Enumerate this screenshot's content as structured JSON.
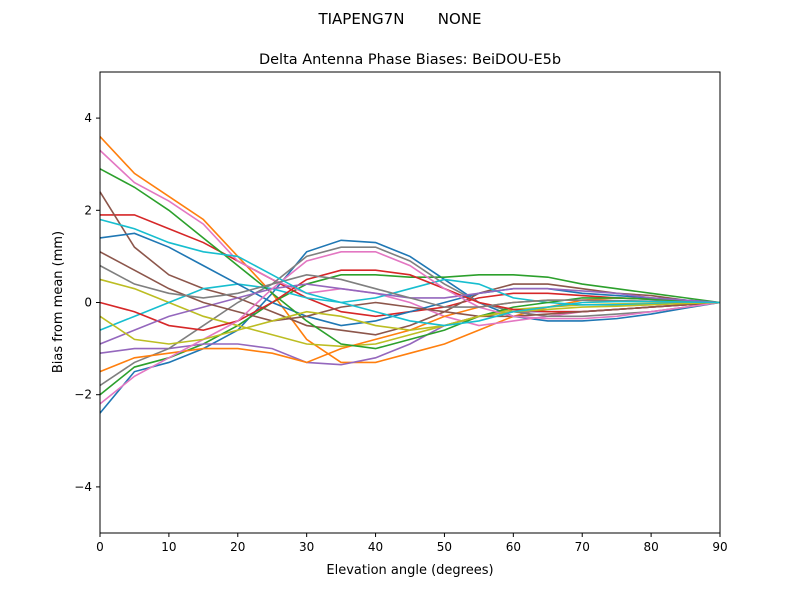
{
  "chart_data": {
    "type": "line",
    "suptitle": "TIAPENG7N       NONE",
    "title": "Delta Antenna Phase Biases: BeiDOU-E5b",
    "xlabel": "Elevation angle (degrees)",
    "ylabel": "Bias from mean (mm)",
    "xlim": [
      0,
      90
    ],
    "ylim": [
      -5,
      5
    ],
    "xticks": [
      0,
      10,
      20,
      30,
      40,
      50,
      60,
      70,
      80,
      90
    ],
    "yticks": [
      -4,
      -2,
      0,
      2,
      4
    ],
    "grid": false,
    "colors": [
      "#1f77b4",
      "#ff7f0e",
      "#2ca02c",
      "#d62728",
      "#9467bd",
      "#8c564b",
      "#e377c2",
      "#7f7f7f",
      "#bcbd22",
      "#17becf"
    ],
    "x": [
      0,
      5,
      10,
      15,
      20,
      25,
      30,
      35,
      40,
      45,
      50,
      55,
      60,
      65,
      70,
      75,
      80,
      85,
      90
    ],
    "series": [
      {
        "values": [
          -2.4,
          -1.5,
          -1.3,
          -1.0,
          -0.6,
          0.2,
          1.1,
          1.35,
          1.3,
          1.0,
          0.5,
          0.0,
          -0.3,
          -0.4,
          -0.4,
          -0.35,
          -0.25,
          -0.12,
          0
        ]
      },
      {
        "values": [
          3.6,
          2.8,
          2.3,
          1.8,
          1.0,
          0.2,
          -0.8,
          -1.3,
          -1.3,
          -1.1,
          -0.9,
          -0.6,
          -0.3,
          -0.1,
          0.05,
          0.1,
          0.08,
          0.04,
          0
        ]
      },
      {
        "values": [
          -2.0,
          -1.4,
          -1.2,
          -0.9,
          -0.5,
          0,
          0.4,
          0.6,
          0.6,
          0.55,
          0.55,
          0.6,
          0.6,
          0.55,
          0.4,
          0.3,
          0.2,
          0.1,
          0
        ]
      },
      {
        "values": [
          1.9,
          1.9,
          1.6,
          1.3,
          0.9,
          0.5,
          0.1,
          -0.2,
          -0.3,
          -0.2,
          -0.1,
          0.1,
          0.2,
          0.2,
          0.15,
          0.1,
          0.07,
          0.03,
          0
        ]
      },
      {
        "values": [
          -1.1,
          -1.0,
          -1.0,
          -0.9,
          -0.9,
          -1.0,
          -1.3,
          -1.35,
          -1.2,
          -0.9,
          -0.5,
          -0.3,
          -0.2,
          -0.2,
          -0.2,
          -0.15,
          -0.1,
          -0.05,
          0
        ]
      },
      {
        "values": [
          2.4,
          1.2,
          0.6,
          0.3,
          0.1,
          -0.2,
          -0.5,
          -0.6,
          -0.7,
          -0.5,
          -0.2,
          0.2,
          0.4,
          0.4,
          0.3,
          0.2,
          0.15,
          0.05,
          0
        ]
      },
      {
        "values": [
          3.3,
          2.6,
          2.2,
          1.7,
          0.9,
          0.5,
          0.2,
          0.3,
          0.2,
          0,
          -0.3,
          -0.5,
          -0.4,
          -0.3,
          -0.2,
          -0.15,
          -0.1,
          -0.05,
          0
        ]
      },
      {
        "values": [
          -1.8,
          -1.3,
          -1.0,
          -0.5,
          0,
          0.4,
          1.0,
          1.2,
          1.2,
          0.9,
          0.4,
          0,
          -0.2,
          -0.3,
          -0.3,
          -0.25,
          -0.2,
          -0.1,
          0
        ]
      },
      {
        "values": [
          0.5,
          0.3,
          0,
          -0.3,
          -0.5,
          -0.7,
          -0.9,
          -0.95,
          -0.9,
          -0.7,
          -0.5,
          -0.3,
          -0.15,
          -0.1,
          -0.05,
          -0.03,
          -0.02,
          -0.01,
          0
        ]
      },
      {
        "values": [
          -0.6,
          -0.3,
          0,
          0.3,
          0.4,
          0.3,
          0.1,
          0,
          0.1,
          0.3,
          0.5,
          0.4,
          0.1,
          0,
          -0.05,
          -0.05,
          -0.03,
          -0.01,
          0
        ]
      },
      {
        "values": [
          1.4,
          1.5,
          1.2,
          0.8,
          0.4,
          0,
          -0.3,
          -0.5,
          -0.4,
          -0.2,
          0,
          0.2,
          0.3,
          0.3,
          0.2,
          0.15,
          0.1,
          0.05,
          0
        ]
      },
      {
        "values": [
          -1.5,
          -1.2,
          -1.1,
          -1.0,
          -1.0,
          -1.1,
          -1.3,
          -1.0,
          -0.8,
          -0.6,
          -0.3,
          -0.1,
          0,
          0.05,
          0.05,
          0.03,
          0.02,
          0.01,
          0
        ]
      },
      {
        "values": [
          2.9,
          2.5,
          2.0,
          1.4,
          0.8,
          0.2,
          -0.4,
          -0.9,
          -1.0,
          -0.8,
          -0.6,
          -0.3,
          -0.1,
          0,
          0.1,
          0.1,
          0.07,
          0.03,
          0
        ]
      },
      {
        "values": [
          0,
          -0.2,
          -0.5,
          -0.6,
          -0.4,
          0,
          0.5,
          0.7,
          0.7,
          0.6,
          0.3,
          0,
          -0.15,
          -0.2,
          -0.2,
          -0.15,
          -0.1,
          -0.05,
          0
        ]
      },
      {
        "values": [
          -0.9,
          -0.6,
          -0.3,
          -0.1,
          0.1,
          0.3,
          0.4,
          0.3,
          0.2,
          0.1,
          0.1,
          0.2,
          0.3,
          0.3,
          0.25,
          0.2,
          0.1,
          0.05,
          0
        ]
      },
      {
        "values": [
          1.1,
          0.7,
          0.3,
          0,
          -0.2,
          -0.4,
          -0.3,
          -0.1,
          0,
          -0.1,
          -0.2,
          -0.3,
          -0.3,
          -0.25,
          -0.2,
          -0.15,
          -0.1,
          -0.05,
          0
        ]
      },
      {
        "values": [
          -2.2,
          -1.6,
          -1.2,
          -0.8,
          -0.4,
          0.3,
          0.9,
          1.1,
          1.1,
          0.8,
          0.3,
          -0.1,
          -0.3,
          -0.35,
          -0.35,
          -0.3,
          -0.2,
          -0.1,
          0
        ]
      },
      {
        "values": [
          0.8,
          0.4,
          0.2,
          0.1,
          0.2,
          0.4,
          0.6,
          0.5,
          0.3,
          0.1,
          -0.1,
          -0.1,
          0,
          0.05,
          0.05,
          0.04,
          0.03,
          0.01,
          0
        ]
      },
      {
        "values": [
          -0.3,
          -0.8,
          -0.9,
          -0.8,
          -0.6,
          -0.4,
          -0.2,
          -0.3,
          -0.5,
          -0.6,
          -0.5,
          -0.3,
          -0.2,
          -0.15,
          -0.1,
          -0.08,
          -0.05,
          -0.02,
          0
        ]
      },
      {
        "values": [
          1.8,
          1.6,
          1.3,
          1.1,
          1.0,
          0.6,
          0.2,
          0,
          -0.2,
          -0.4,
          -0.5,
          -0.4,
          -0.2,
          -0.1,
          0,
          0.02,
          0.02,
          0.01,
          0
        ]
      }
    ]
  }
}
